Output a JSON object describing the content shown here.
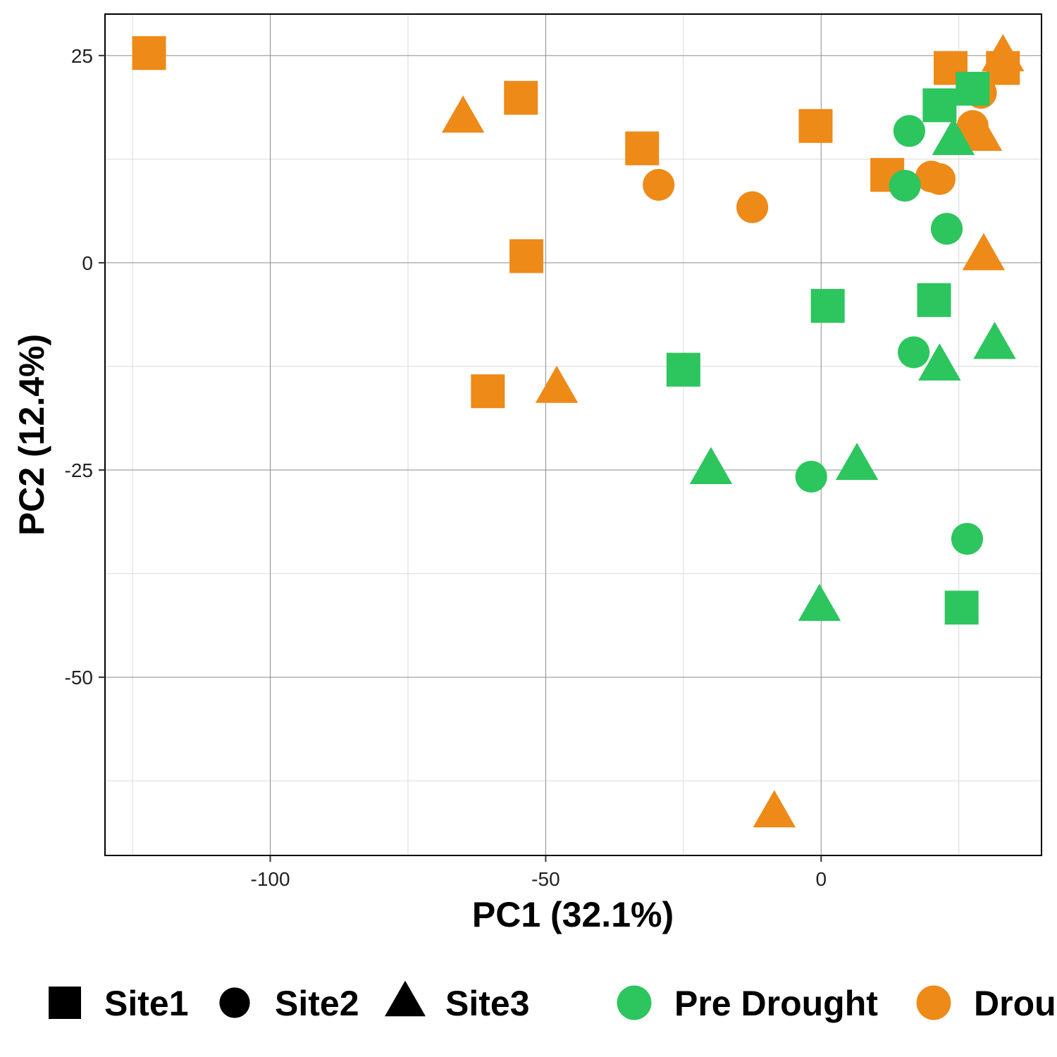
{
  "chart_data": {
    "type": "scatter",
    "title": "",
    "xlabel": "PC1 (32.1%)",
    "ylabel": "PC2 (12.4%)",
    "xlim": [
      -130,
      40
    ],
    "ylim": [
      -71.5,
      30
    ],
    "xticks": [
      -100,
      -50,
      0
    ],
    "yticks": [
      25,
      0,
      -25,
      -50
    ],
    "xminor": [
      -125,
      -75,
      -25,
      25
    ],
    "yminor": [
      12.5,
      -12.5,
      -37.5,
      -62.5
    ],
    "grid": true,
    "legend_position": "bottom",
    "groups": [
      {
        "name": "Pre Drought",
        "color": "#2DC55E"
      },
      {
        "name": "Drought",
        "color": "#EE8A17"
      }
    ],
    "shapes": [
      {
        "name": "Site1",
        "marker": "square"
      },
      {
        "name": "Site2",
        "marker": "circle"
      },
      {
        "name": "Site3",
        "marker": "triangle"
      }
    ],
    "points": [
      {
        "x": -122,
        "y": 25.3,
        "group": "Drought",
        "shape": "Site1"
      },
      {
        "x": -54.5,
        "y": 19.9,
        "group": "Drought",
        "shape": "Site1"
      },
      {
        "x": -32.5,
        "y": 13.8,
        "group": "Drought",
        "shape": "Site1"
      },
      {
        "x": -1,
        "y": 16.5,
        "group": "Drought",
        "shape": "Site1"
      },
      {
        "x": 12,
        "y": 10.6,
        "group": "Drought",
        "shape": "Site1"
      },
      {
        "x": 23.5,
        "y": 23.5,
        "group": "Drought",
        "shape": "Site1"
      },
      {
        "x": 33,
        "y": 23.5,
        "group": "Drought",
        "shape": "Site1"
      },
      {
        "x": -53.5,
        "y": 0.8,
        "group": "Drought",
        "shape": "Site1"
      },
      {
        "x": -60.5,
        "y": -15.5,
        "group": "Drought",
        "shape": "Site1"
      },
      {
        "x": -29.5,
        "y": 9.4,
        "group": "Drought",
        "shape": "Site2"
      },
      {
        "x": -12.5,
        "y": 6.7,
        "group": "Drought",
        "shape": "Site2"
      },
      {
        "x": 20,
        "y": 10.4,
        "group": "Drought",
        "shape": "Site2"
      },
      {
        "x": 21.5,
        "y": 10.1,
        "group": "Drought",
        "shape": "Site2"
      },
      {
        "x": 27.5,
        "y": 16.5,
        "group": "Drought",
        "shape": "Site2"
      },
      {
        "x": 29,
        "y": 20.5,
        "group": "Drought",
        "shape": "Site2"
      },
      {
        "x": -65,
        "y": 17.4,
        "group": "Drought",
        "shape": "Site3"
      },
      {
        "x": -48,
        "y": -15.2,
        "group": "Drought",
        "shape": "Site3"
      },
      {
        "x": 29,
        "y": 15.2,
        "group": "Drought",
        "shape": "Site3"
      },
      {
        "x": 33,
        "y": 24.8,
        "group": "Drought",
        "shape": "Site3"
      },
      {
        "x": 29.5,
        "y": 0.8,
        "group": "Drought",
        "shape": "Site3"
      },
      {
        "x": -8.5,
        "y": -66.4,
        "group": "Drought",
        "shape": "Site3"
      },
      {
        "x": 21.5,
        "y": 19,
        "group": "Pre Drought",
        "shape": "Site1"
      },
      {
        "x": 27.5,
        "y": 21,
        "group": "Pre Drought",
        "shape": "Site1"
      },
      {
        "x": 1.2,
        "y": -5.2,
        "group": "Pre Drought",
        "shape": "Site1"
      },
      {
        "x": 20.5,
        "y": -4.5,
        "group": "Pre Drought",
        "shape": "Site1"
      },
      {
        "x": -25,
        "y": -12.9,
        "group": "Pre Drought",
        "shape": "Site1"
      },
      {
        "x": 25.5,
        "y": -41.6,
        "group": "Pre Drought",
        "shape": "Site1"
      },
      {
        "x": 16,
        "y": 15.9,
        "group": "Pre Drought",
        "shape": "Site2"
      },
      {
        "x": 15.2,
        "y": 9.3,
        "group": "Pre Drought",
        "shape": "Site2"
      },
      {
        "x": 22.8,
        "y": 4.1,
        "group": "Pre Drought",
        "shape": "Site2"
      },
      {
        "x": 16.8,
        "y": -10.8,
        "group": "Pre Drought",
        "shape": "Site2"
      },
      {
        "x": -1.8,
        "y": -25.8,
        "group": "Pre Drought",
        "shape": "Site2"
      },
      {
        "x": 26.5,
        "y": -33.3,
        "group": "Pre Drought",
        "shape": "Site2"
      },
      {
        "x": 24,
        "y": 14.7,
        "group": "Pre Drought",
        "shape": "Site3"
      },
      {
        "x": 31.5,
        "y": -9.9,
        "group": "Pre Drought",
        "shape": "Site3"
      },
      {
        "x": 21.5,
        "y": -12.5,
        "group": "Pre Drought",
        "shape": "Site3"
      },
      {
        "x": 6.5,
        "y": -24.5,
        "group": "Pre Drought",
        "shape": "Site3"
      },
      {
        "x": -20,
        "y": -25,
        "group": "Pre Drought",
        "shape": "Site3"
      },
      {
        "x": -0.3,
        "y": -41.5,
        "group": "Pre Drought",
        "shape": "Site3"
      }
    ]
  }
}
